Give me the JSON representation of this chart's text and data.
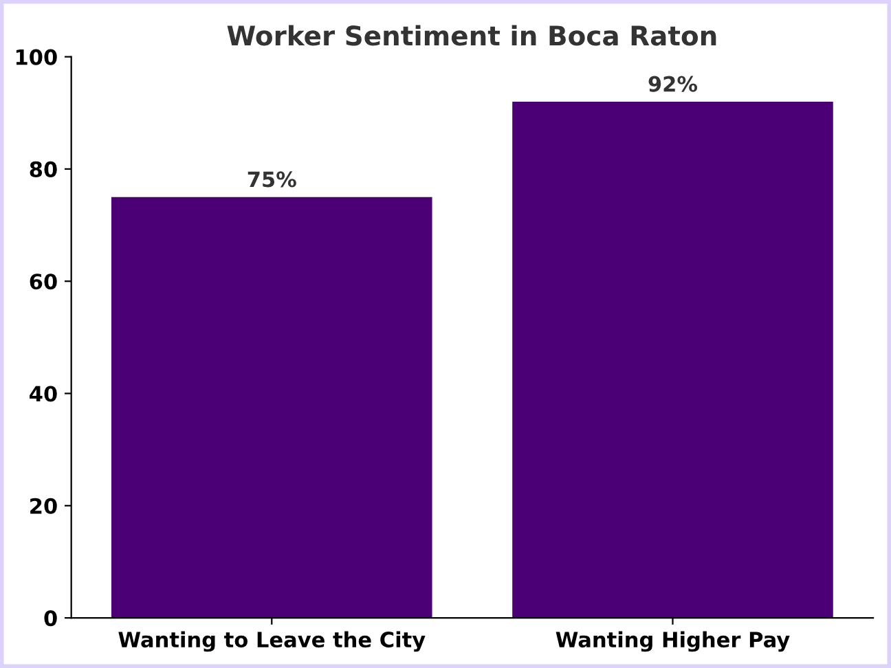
{
  "chart_data": {
    "type": "bar",
    "title": "Worker Sentiment in Boca Raton",
    "categories": [
      "Wanting to Leave the City",
      "Wanting Higher Pay"
    ],
    "values": [
      75,
      92
    ],
    "value_labels": [
      "75%",
      "92%"
    ],
    "color": "#4b0076",
    "ylim": [
      0,
      100
    ],
    "yticks": [
      0,
      20,
      40,
      60,
      80,
      100
    ],
    "grid": false,
    "legend": false
  }
}
